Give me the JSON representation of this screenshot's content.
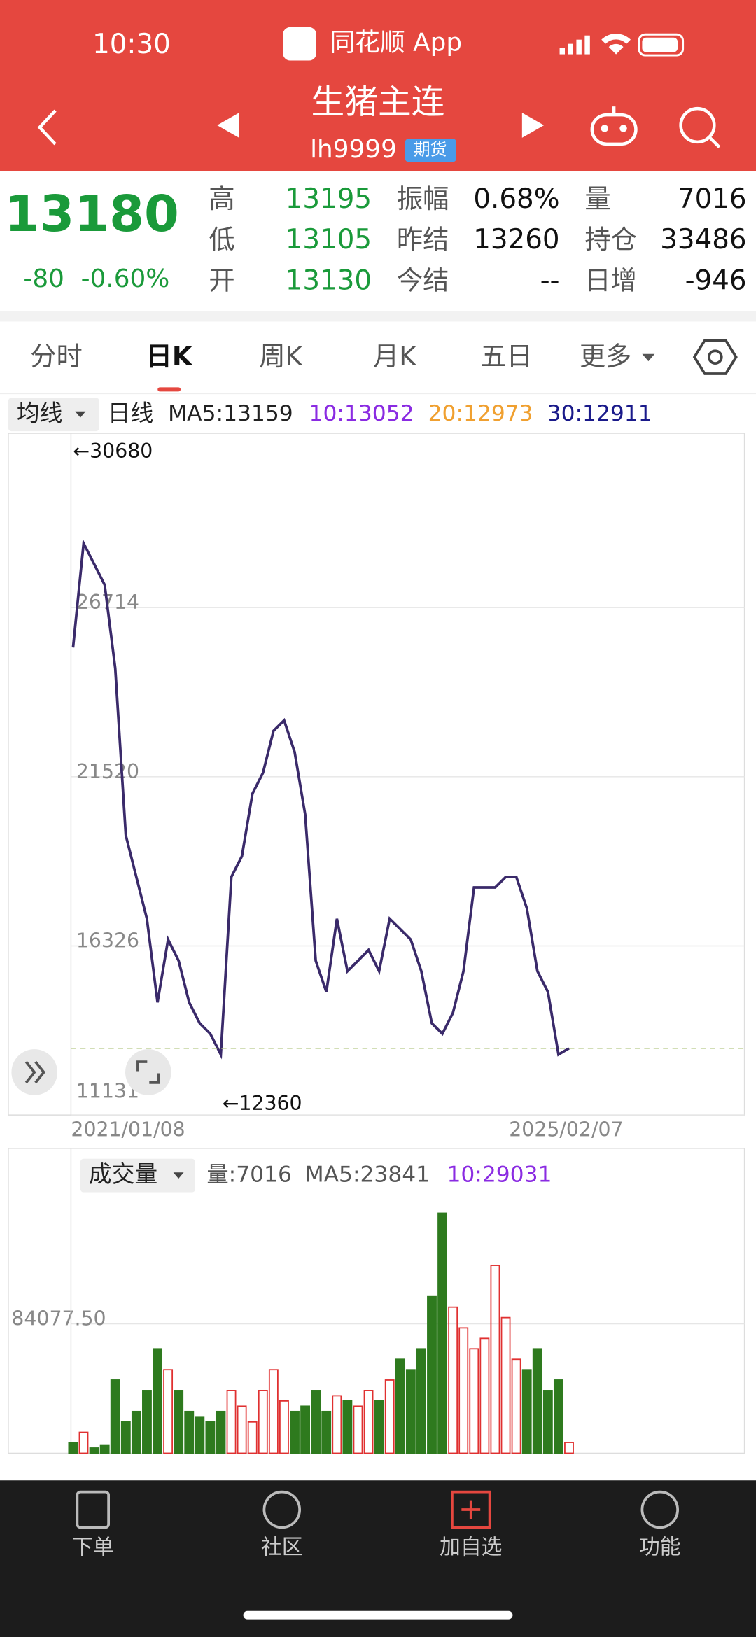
{
  "status_bar": {
    "time": "10:30",
    "app": "同花顺 App"
  },
  "header": {
    "title": "生猪主连",
    "code": "lh9999",
    "badge": "期货"
  },
  "quote": {
    "price": "13180",
    "change": "-80",
    "change_pct": "-0.60%",
    "fields": [
      {
        "label": "高",
        "value": "13195"
      },
      {
        "label": "振幅",
        "value": "0.68%"
      },
      {
        "label": "量",
        "value": "7016"
      },
      {
        "label": "低",
        "value": "13105"
      },
      {
        "label": "昨结",
        "value": "13260"
      },
      {
        "label": "持仓",
        "value": "33486"
      },
      {
        "label": "开",
        "value": "13130"
      },
      {
        "label": "今结",
        "value": "--"
      },
      {
        "label": "日增",
        "value": "-946"
      }
    ]
  },
  "tabs": [
    "分时",
    "日K",
    "周K",
    "月K",
    "五日",
    "更多"
  ],
  "active_tab": 1,
  "price_chart": {
    "indicator": "均线",
    "period": "日线",
    "ma": [
      {
        "label": "MA5:13159",
        "color": "#222222"
      },
      {
        "label": "10:13052",
        "color": "#8a2be2"
      },
      {
        "label": "20:12973",
        "color": "#f0a030"
      },
      {
        "label": "30:12911",
        "color": "#1a1a8a"
      }
    ],
    "high_label": "←30680",
    "low_label": "←12360",
    "start_date": "2021/01/08",
    "end_date": "2025/02/07",
    "ylim": [
      11131,
      31908
    ],
    "yticks": [
      11131,
      16326,
      21520,
      26714
    ],
    "color": "#3a2a6a",
    "closes": [
      25490,
      28690,
      28050,
      27410,
      24850,
      19720,
      18440,
      17160,
      14590,
      16520,
      15870,
      14590,
      13950,
      13630,
      12990,
      18440,
      19080,
      21000,
      21640,
      22930,
      23250,
      22280,
      20360,
      15870,
      14910,
      17160,
      15550,
      15870,
      16200,
      15550,
      17160,
      16840,
      16520,
      15550,
      13950,
      13630,
      14270,
      15550,
      18120,
      18120,
      18120,
      18440,
      18440,
      17480,
      15550,
      14910,
      12990,
      13180
    ]
  },
  "volume_chart": {
    "indicator": "成交量",
    "legend": [
      {
        "label": "量:7016",
        "color": "#555555"
      },
      {
        "label": "MA5:23841",
        "color": "#555555"
      },
      {
        "label": "10:29031",
        "color": "#8a2be2"
      }
    ],
    "ylim": [
      0,
      168155
    ],
    "yticks": [
      {
        "value": 84077.5,
        "label": "84077.50"
      }
    ],
    "up_color": "#e03030",
    "down_color": "#2e7a1e",
    "values": [
      6800,
      13600,
      3400,
      5400,
      47500,
      20300,
      27100,
      40700,
      67800,
      54200,
      40700,
      27100,
      23700,
      20300,
      27100,
      40700,
      30500,
      20300,
      40700,
      54200,
      33900,
      27100,
      30500,
      40700,
      27100,
      37300,
      33900,
      30500,
      40700,
      33900,
      47500,
      61000,
      54200,
      67800,
      101700,
      155900,
      94900,
      81400,
      67800,
      74600,
      122000,
      88100,
      61000,
      54200,
      67800,
      40700,
      47500,
      7016
    ]
  },
  "nav": [
    "下单",
    "社区",
    "加自选",
    "功能"
  ]
}
